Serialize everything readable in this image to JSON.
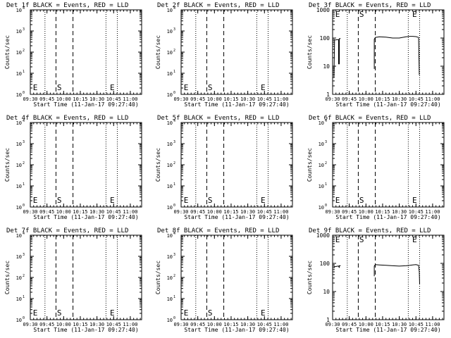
{
  "x_axis": {
    "tick_labels": [
      "09:30",
      "09:45",
      "10:00",
      "10:15",
      "10:30",
      "10:45",
      "11:00"
    ],
    "tick_hours": [
      9.5,
      9.75,
      10.0,
      10.25,
      10.5,
      10.75,
      11.0
    ],
    "range_hours": [
      9.5,
      11.17
    ],
    "title": "Start Time (11-Jan-17 09:27:40)"
  },
  "markers": {
    "dotted_lines_hours": [
      9.72,
      10.635,
      10.805
    ],
    "dashed_lines_hours": [
      9.885,
      10.14
    ],
    "letters": [
      {
        "text": "E",
        "hour": 9.54
      },
      {
        "text": "S",
        "hour": 9.9
      },
      {
        "text": "E",
        "hour": 10.695
      }
    ]
  },
  "ylabel": "Counts/sec",
  "chart_data": [
    {
      "type": "line",
      "title": "Det 1f BLACK = Events, RED = LLD",
      "ylabel": "Counts/sec",
      "yscale": "log",
      "ylim_exponent": [
        0,
        4
      ],
      "series": []
    },
    {
      "type": "line",
      "title": "Det 2f BLACK = Events, RED = LLD",
      "ylabel": "Counts/sec",
      "yscale": "log",
      "ylim_exponent": [
        0,
        4
      ],
      "series": []
    },
    {
      "type": "line",
      "title": "Det 3f BLACK = Events, RED = LLD",
      "ylabel": "Counts/sec",
      "yscale": "log",
      "ylim": [
        1,
        1000
      ],
      "yticks": [
        "1",
        "10",
        "100",
        "1000"
      ],
      "series": [
        {
          "x_hours": [
            9.52,
            9.53,
            9.53,
            9.59,
            9.59,
            9.6,
            9.6,
            9.62
          ],
          "y": [
            4,
            85,
            85,
            88,
            12,
            12,
            95,
            95
          ]
        },
        {
          "x_hours": [
            10.125,
            10.125,
            10.14,
            10.2,
            10.3,
            10.4,
            10.5,
            10.6,
            10.66,
            10.7,
            10.75,
            10.79,
            10.8,
            10.805
          ],
          "y": [
            8,
            90,
            105,
            110,
            108,
            100,
            100,
            110,
            115,
            115,
            112,
            105,
            5,
            5
          ]
        }
      ]
    },
    {
      "type": "line",
      "title": "Det 4f BLACK = Events, RED = LLD",
      "ylabel": "Counts/sec",
      "yscale": "log",
      "ylim_exponent": [
        0,
        4
      ],
      "series": []
    },
    {
      "type": "line",
      "title": "Det 5f BLACK = Events, RED = LLD",
      "ylabel": "Counts/sec",
      "yscale": "log",
      "ylim_exponent": [
        0,
        4
      ],
      "series": []
    },
    {
      "type": "line",
      "title": "Det 6f BLACK = Events, RED = LLD",
      "ylabel": "Counts/sec",
      "yscale": "log",
      "ylim_exponent": [
        0,
        4
      ],
      "series": []
    },
    {
      "type": "line",
      "title": "Det 7f BLACK = Events, RED = LLD",
      "ylabel": "Counts/sec",
      "yscale": "log",
      "ylim_exponent": [
        0,
        4
      ],
      "series": []
    },
    {
      "type": "line",
      "title": "Det 8f BLACK = Events, RED = LLD",
      "ylabel": "Counts/sec",
      "yscale": "log",
      "ylim_exponent": [
        0,
        4
      ],
      "series": []
    },
    {
      "type": "line",
      "title": "Det 9f BLACK = Events, RED = LLD",
      "ylabel": "Counts/sec",
      "yscale": "log",
      "ylim": [
        1,
        1000
      ],
      "yticks": [
        "1",
        "10",
        "100",
        "1000"
      ],
      "series": [
        {
          "x_hours": [
            9.52,
            9.52,
            9.58,
            9.59,
            9.6,
            9.6,
            9.62
          ],
          "y": [
            75,
            75,
            80,
            80,
            70,
            82,
            82
          ]
        },
        {
          "x_hours": [
            10.125,
            10.125,
            10.14,
            10.2,
            10.3,
            10.4,
            10.5,
            10.6,
            10.66,
            10.7,
            10.75,
            10.79,
            10.8,
            10.805
          ],
          "y": [
            35,
            80,
            90,
            88,
            85,
            82,
            80,
            82,
            85,
            88,
            90,
            85,
            50,
            18
          ]
        }
      ]
    }
  ]
}
